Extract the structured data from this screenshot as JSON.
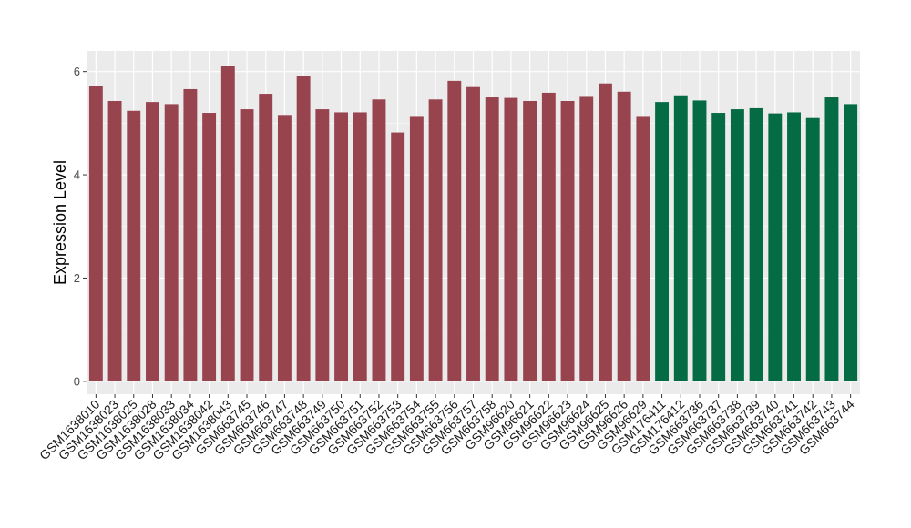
{
  "chart_data": {
    "type": "bar",
    "title": "",
    "xlabel": "",
    "ylabel": "Expression Level",
    "ylim": [
      -0.25,
      6.4
    ],
    "yticks": [
      0,
      2,
      4,
      6
    ],
    "grid": true,
    "legend": "none",
    "colors": {
      "group1": "#98444f",
      "group2": "#046b45",
      "panel": "#ebebeb",
      "grid": "#ffffff"
    },
    "categories": [
      "GSM1638010",
      "GSM1638023",
      "GSM1638025",
      "GSM1638028",
      "GSM1638033",
      "GSM1638034",
      "GSM1638042",
      "GSM1638043",
      "GSM663745",
      "GSM663746",
      "GSM663747",
      "GSM663748",
      "GSM663749",
      "GSM663750",
      "GSM663751",
      "GSM663752",
      "GSM663753",
      "GSM663754",
      "GSM663755",
      "GSM663756",
      "GSM663757",
      "GSM663758",
      "GSM96620",
      "GSM96621",
      "GSM96622",
      "GSM96623",
      "GSM96624",
      "GSM96625",
      "GSM96626",
      "GSM96629",
      "GSM176411",
      "GSM176412",
      "GSM663736",
      "GSM663737",
      "GSM663738",
      "GSM663739",
      "GSM663740",
      "GSM663741",
      "GSM663742",
      "GSM663743",
      "GSM663744"
    ],
    "values": [
      5.72,
      5.43,
      5.24,
      5.41,
      5.37,
      5.66,
      5.2,
      6.11,
      5.27,
      5.57,
      5.16,
      5.92,
      5.27,
      5.21,
      5.21,
      5.46,
      4.82,
      5.14,
      5.46,
      5.82,
      5.7,
      5.5,
      5.49,
      5.43,
      5.59,
      5.43,
      5.51,
      5.77,
      5.61,
      5.14,
      5.41,
      5.54,
      5.44,
      5.2,
      5.27,
      5.29,
      5.19,
      5.21,
      5.1,
      5.5,
      5.37
    ],
    "groups": [
      1,
      1,
      1,
      1,
      1,
      1,
      1,
      1,
      1,
      1,
      1,
      1,
      1,
      1,
      1,
      1,
      1,
      1,
      1,
      1,
      1,
      1,
      1,
      1,
      1,
      1,
      1,
      1,
      1,
      1,
      2,
      2,
      2,
      2,
      2,
      2,
      2,
      2,
      2,
      2,
      2
    ]
  }
}
